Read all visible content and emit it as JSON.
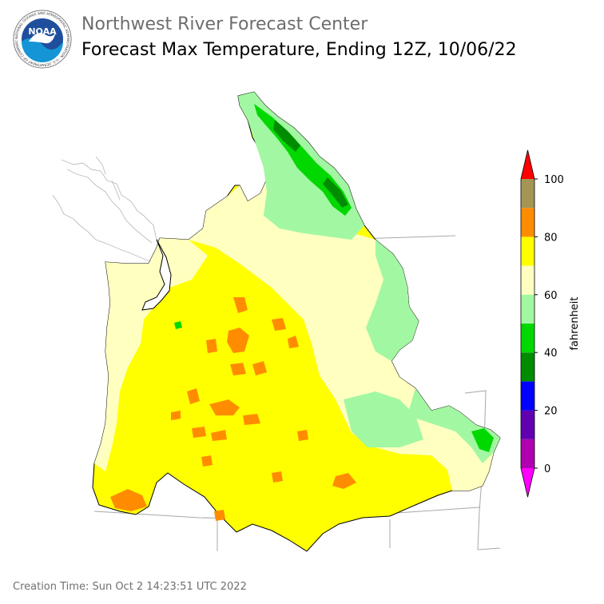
{
  "header": {
    "organization": "Northwest River Forecast Center",
    "title": "Forecast Max Temperature, Ending 12Z, 10/06/22"
  },
  "logo": {
    "center_text": "NOAA",
    "ring_text": "NATIONAL OCEANIC AND ATMOSPHERIC ADMINISTRATION · U.S. DEPARTMENT OF COMMERCE"
  },
  "colorbar": {
    "label": "fahrenheit",
    "tick_labels": [
      "0",
      "20",
      "40",
      "60",
      "80",
      "100"
    ],
    "bins": [
      {
        "from": -10,
        "to": 0,
        "color": "#ff00ff"
      },
      {
        "from": 0,
        "to": 10,
        "color": "#b000b0"
      },
      {
        "from": 10,
        "to": 20,
        "color": "#6000b0"
      },
      {
        "from": 20,
        "to": 30,
        "color": "#0000ff"
      },
      {
        "from": 30,
        "to": 40,
        "color": "#008c00"
      },
      {
        "from": 40,
        "to": 50,
        "color": "#00d800"
      },
      {
        "from": 50,
        "to": 60,
        "color": "#a2f7a2"
      },
      {
        "from": 60,
        "to": 70,
        "color": "#ffffc0"
      },
      {
        "from": 70,
        "to": 80,
        "color": "#ffff00"
      },
      {
        "from": 80,
        "to": 90,
        "color": "#ff8c00"
      },
      {
        "from": 90,
        "to": 100,
        "color": "#a49555"
      },
      {
        "from": 100,
        "to": 110,
        "color": "#ff0000"
      }
    ]
  },
  "footer": {
    "creation_time": "Creation Time: Sun Oct 2 14:23:51 UTC 2022"
  }
}
